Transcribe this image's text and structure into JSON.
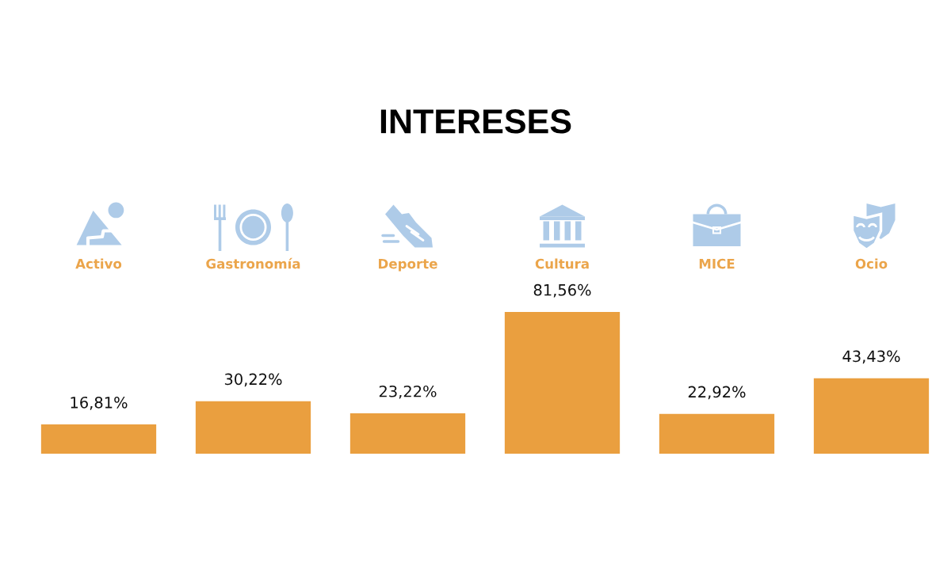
{
  "chart_data": {
    "type": "bar",
    "title": "INTERESES",
    "categories": [
      "Activo",
      "Gastronomía",
      "Deporte",
      "Cultura",
      "MICE",
      "Ocio"
    ],
    "values": [
      16.81,
      30.22,
      23.22,
      81.56,
      22.92,
      43.43
    ],
    "color": "#ea9f3f",
    "value_labels": [
      "16,81%",
      "30,22%",
      "23,22%",
      "81,56%",
      "22,92%",
      "43,43%"
    ]
  }
}
